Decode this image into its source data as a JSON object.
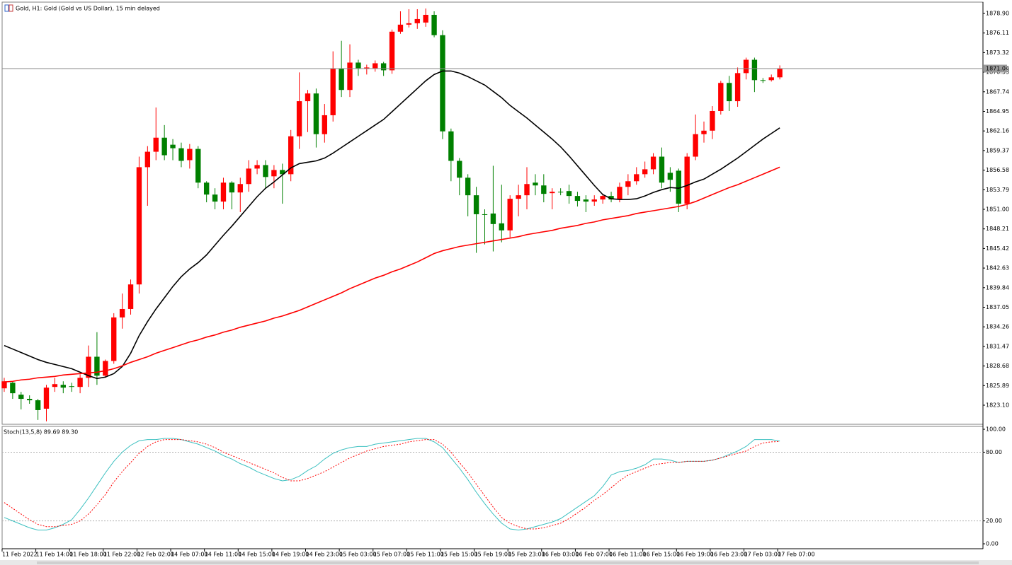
{
  "header": {
    "title": "Gold, H1:  Gold (Gold vs US Dollar), 15 min delayed"
  },
  "chart_data": [
    {
      "type": "candlestick",
      "up_color": "#ff0000",
      "down_color": "#008000",
      "open": [
        1825.5,
        1826.3,
        1824.6,
        1824,
        1823.8,
        1822.6,
        1825.7,
        1826,
        1825.8,
        1825.7,
        1827,
        1830,
        1827.3,
        1829.4,
        1835.6,
        1836.8,
        1840.3,
        1857,
        1859.2,
        1861.2,
        1860.2,
        1859.7,
        1858,
        1859.6,
        1854.8,
        1853.1,
        1852.1,
        1854.8,
        1853.4,
        1854.6,
        1856.8,
        1857.3,
        1855.7,
        1856.6,
        1856,
        1861.4,
        1866.4,
        1867.5,
        1861.7,
        1864.4,
        1871,
        1868,
        1871.9,
        1871,
        1871.1,
        1871.8,
        1870.8,
        1876.3,
        1877.3,
        1877.5,
        1877.6,
        1878.7,
        1875.8,
        1862.1,
        1857.9,
        1855.5,
        1853,
        1850.3,
        1850.4,
        1849,
        1848,
        1852.5,
        1853,
        1854.8,
        1854.4,
        1853.3,
        1853.5,
        1853.6,
        1852.9,
        1852.4,
        1852.1,
        1852.4,
        1852.9,
        1852.4,
        1854.2,
        1855,
        1856,
        1856.7,
        1858.5,
        1856.2,
        1856.5,
        1851.8,
        1858.5,
        1861.7,
        1862.2,
        1865,
        1869,
        1866.4,
        1870.4,
        1872.3,
        1869.4,
        1869.4,
        1869.8
      ],
      "high": [
        1827,
        1826.5,
        1825,
        1824.5,
        1824,
        1826,
        1827,
        1826.5,
        1826.3,
        1827.5,
        1831.6,
        1833.5,
        1829.6,
        1836.2,
        1839,
        1841,
        1858.5,
        1860,
        1865.5,
        1863,
        1861,
        1860.5,
        1860.3,
        1860,
        1855,
        1854,
        1855.5,
        1855,
        1855.5,
        1858,
        1858,
        1858,
        1857.3,
        1857.5,
        1862.3,
        1870.5,
        1868,
        1868.2,
        1866,
        1873.5,
        1875,
        1874.5,
        1872.3,
        1871.6,
        1872.2,
        1872,
        1876.6,
        1879.2,
        1879.5,
        1879.5,
        1879.6,
        1879.2,
        1876.5,
        1862.5,
        1858.3,
        1856,
        1854.2,
        1851,
        1857.2,
        1854.5,
        1853,
        1854.5,
        1857,
        1856,
        1856,
        1854,
        1854,
        1854.5,
        1853.5,
        1853,
        1853,
        1853.2,
        1853.5,
        1854.8,
        1856,
        1857,
        1857.8,
        1859,
        1859.8,
        1857,
        1856.8,
        1859,
        1864.5,
        1863.5,
        1865.7,
        1869.3,
        1870,
        1871.2,
        1872.6,
        1872.6,
        1869.7,
        1870.2,
        1871.5
      ],
      "low": [
        1825,
        1824,
        1822.5,
        1823.3,
        1821,
        1820.8,
        1825,
        1824.8,
        1825,
        1824.8,
        1825.7,
        1826,
        1827,
        1829,
        1834,
        1836,
        1839,
        1851.5,
        1858,
        1858,
        1858,
        1857,
        1856.8,
        1854,
        1852,
        1851,
        1851,
        1851,
        1850.6,
        1853.5,
        1856,
        1854,
        1854,
        1851.8,
        1855,
        1859.6,
        1862,
        1859.8,
        1860.5,
        1863.5,
        1867,
        1867,
        1870,
        1870.2,
        1870.6,
        1870,
        1870.3,
        1876,
        1876.9,
        1876.7,
        1877,
        1875.5,
        1861,
        1855,
        1853,
        1850,
        1844.8,
        1846,
        1845,
        1846.3,
        1847,
        1850,
        1851,
        1853,
        1852,
        1851,
        1853,
        1851.8,
        1851.4,
        1850.6,
        1851.5,
        1851.8,
        1852,
        1852,
        1853,
        1854.5,
        1855.5,
        1856,
        1854,
        1853.5,
        1850.6,
        1851,
        1858,
        1860.5,
        1861,
        1864.5,
        1865,
        1865.6,
        1869.5,
        1867.7,
        1869,
        1869.2,
        1869.5
      ],
      "close": [
        1826.5,
        1824.8,
        1824,
        1823.8,
        1822.4,
        1825.6,
        1826.1,
        1825.6,
        1825.7,
        1827,
        1830,
        1827.3,
        1829.4,
        1835.6,
        1836.8,
        1840.3,
        1857,
        1859.2,
        1861.2,
        1858.7,
        1859.7,
        1857.9,
        1859.6,
        1854.8,
        1853.1,
        1852.1,
        1854.8,
        1853.4,
        1854.6,
        1856.8,
        1857.3,
        1855.6,
        1856.6,
        1856,
        1861.4,
        1866.4,
        1867.5,
        1861.7,
        1864.4,
        1871,
        1868,
        1871.9,
        1871.1,
        1871.2,
        1871.8,
        1870.8,
        1876.3,
        1877.3,
        1877.5,
        1878.1,
        1878.7,
        1875.8,
        1862.1,
        1857.9,
        1855.5,
        1853,
        1850.3,
        1850.2,
        1848.9,
        1848,
        1852.5,
        1853,
        1854.6,
        1854.4,
        1853.2,
        1853.5,
        1853.4,
        1852.9,
        1852.2,
        1852.1,
        1852.4,
        1852.9,
        1852.4,
        1854.2,
        1855,
        1856,
        1856.7,
        1858.5,
        1854.8,
        1855.2,
        1851.8,
        1858.5,
        1861.7,
        1862.2,
        1865,
        1869,
        1866.4,
        1870.4,
        1872.3,
        1869.4,
        1869.3,
        1869.8,
        1871.04
      ],
      "series": [
        {
          "color": "#000000",
          "values": [
            1831.6,
            1831.1,
            1830.6,
            1830.1,
            1829.6,
            1829.2,
            1828.9,
            1828.6,
            1828.3,
            1827.8,
            1827.3,
            1826.9,
            1827.1,
            1827.6,
            1828.6,
            1830.5,
            1833,
            1835,
            1836.8,
            1838.4,
            1840,
            1841.4,
            1842.5,
            1843.4,
            1844.5,
            1845.9,
            1847.3,
            1848.6,
            1850,
            1851.4,
            1852.8,
            1854,
            1854.9,
            1855.9,
            1856.9,
            1857.5,
            1857.7,
            1857.9,
            1858.3,
            1859,
            1859.8,
            1860.6,
            1861.4,
            1862.2,
            1863,
            1863.8,
            1864.9,
            1866,
            1867.1,
            1868.2,
            1869.3,
            1870.2,
            1870.7,
            1870.7,
            1870.4,
            1869.9,
            1869.3,
            1868.7,
            1867.8,
            1866.9,
            1865.8,
            1864.9,
            1864,
            1863,
            1862,
            1861,
            1859.9,
            1858.6,
            1857.2,
            1855.8,
            1854.4,
            1853.1,
            1852.5,
            1852.4,
            1852.4,
            1852.5,
            1852.9,
            1853.4,
            1853.8,
            1854.1,
            1854,
            1854.4,
            1854.9,
            1855.3,
            1856,
            1856.7,
            1857.5,
            1858.3,
            1859.2,
            1860.1,
            1861,
            1861.8,
            1862.6
          ]
        },
        {
          "color": "#ff0000",
          "values": [
            1826.4,
            1826.5,
            1826.7,
            1826.8,
            1827,
            1827.1,
            1827.2,
            1827.4,
            1827.5,
            1827.6,
            1827.7,
            1827.8,
            1828,
            1828.3,
            1828.7,
            1829.2,
            1829.6,
            1830,
            1830.5,
            1830.9,
            1831.3,
            1831.7,
            1832.1,
            1832.4,
            1832.8,
            1833.1,
            1833.5,
            1833.8,
            1834.2,
            1834.5,
            1834.8,
            1835.1,
            1835.5,
            1835.8,
            1836.2,
            1836.6,
            1837.1,
            1837.6,
            1838.1,
            1838.6,
            1839.1,
            1839.7,
            1840.2,
            1840.7,
            1841.2,
            1841.6,
            1842.1,
            1842.5,
            1843,
            1843.5,
            1844.1,
            1844.7,
            1845.1,
            1845.4,
            1845.7,
            1845.9,
            1846.1,
            1846.3,
            1846.5,
            1846.7,
            1846.9,
            1847.1,
            1847.4,
            1847.6,
            1847.8,
            1848,
            1848.3,
            1848.5,
            1848.7,
            1849,
            1849.2,
            1849.5,
            1849.7,
            1849.9,
            1850.1,
            1850.4,
            1850.6,
            1850.8,
            1851,
            1851.2,
            1851.4,
            1851.7,
            1852.1,
            1852.6,
            1853.1,
            1853.6,
            1854.1,
            1854.5,
            1855,
            1855.5,
            1856,
            1856.5,
            1857
          ]
        }
      ],
      "bid": 1871.04,
      "xlim": [
        -0.25,
        116.1
      ],
      "ylim": [
        1820.38,
        1880.51
      ],
      "yticks": [
        {
          "value": 1878.9,
          "label": "1878.90"
        },
        {
          "value": 1876.11,
          "label": "1876.11"
        },
        {
          "value": 1873.32,
          "label": "1873.32"
        },
        {
          "value": 1870.53,
          "label": "1870.53"
        },
        {
          "value": 1867.74,
          "label": "1867.74"
        },
        {
          "value": 1864.95,
          "label": "1864.95"
        },
        {
          "value": 1862.16,
          "label": "1862.16"
        },
        {
          "value": 1859.37,
          "label": "1859.37"
        },
        {
          "value": 1856.58,
          "label": "1856.58"
        },
        {
          "value": 1853.79,
          "label": "1853.79"
        },
        {
          "value": 1851,
          "label": "1851.00"
        },
        {
          "value": 1848.21,
          "label": "1848.21"
        },
        {
          "value": 1845.42,
          "label": "1845.42"
        },
        {
          "value": 1842.63,
          "label": "1842.63"
        },
        {
          "value": 1839.84,
          "label": "1839.84"
        },
        {
          "value": 1837.05,
          "label": "1837.05"
        },
        {
          "value": 1834.26,
          "label": "1834.26"
        },
        {
          "value": 1831.47,
          "label": "1831.47"
        },
        {
          "value": 1828.68,
          "label": "1828.68"
        },
        {
          "value": 1825.89,
          "label": "1825.89"
        },
        {
          "value": 1823.1,
          "label": "1823.10"
        }
      ],
      "xticks": [
        {
          "value": 0,
          "label": "11 Feb 2022"
        },
        {
          "value": 4,
          "label": "11 Feb 14:00"
        },
        {
          "value": 8,
          "label": "11 Feb 18:00"
        },
        {
          "value": 12,
          "label": "11 Feb 22:00"
        },
        {
          "value": 16,
          "label": "12 Feb 02:00"
        },
        {
          "value": 20,
          "label": "14 Feb 07:00"
        },
        {
          "value": 24,
          "label": "14 Feb 11:00"
        },
        {
          "value": 28,
          "label": "14 Feb 15:00"
        },
        {
          "value": 32,
          "label": "14 Feb 19:00"
        },
        {
          "value": 36,
          "label": "14 Feb 23:00"
        },
        {
          "value": 40,
          "label": "15 Feb 03:00"
        },
        {
          "value": 44,
          "label": "15 Feb 07:00"
        },
        {
          "value": 48,
          "label": "15 Feb 11:00"
        },
        {
          "value": 52,
          "label": "15 Feb 15:00"
        },
        {
          "value": 56,
          "label": "15 Feb 19:00"
        },
        {
          "value": 60,
          "label": "15 Feb 23:00"
        },
        {
          "value": 64,
          "label": "16 Feb 03:00"
        },
        {
          "value": 68,
          "label": "16 Feb 07:00"
        },
        {
          "value": 72,
          "label": "16 Feb 11:00"
        },
        {
          "value": 76,
          "label": "16 Feb 15:00"
        },
        {
          "value": 80,
          "label": "16 Feb 19:00"
        },
        {
          "value": 84,
          "label": "16 Feb 23:00"
        },
        {
          "value": 88,
          "label": "17 Feb 03:00"
        },
        {
          "value": 92,
          "label": "17 Feb 07:00"
        }
      ]
    },
    {
      "type": "line",
      "title": "Stoch(13,5,8) 89.69 89.30",
      "series": [
        {
          "color": "#3cc0c0",
          "values": [
            23,
            20,
            17,
            14,
            12,
            12,
            14,
            17,
            21,
            30,
            40,
            51,
            62,
            72,
            80,
            86,
            90,
            91,
            91,
            92,
            92,
            91,
            89,
            87,
            84,
            81,
            77,
            74,
            70,
            67,
            63,
            60,
            57,
            55,
            56,
            59,
            64,
            68,
            74,
            79,
            82,
            84,
            85,
            85,
            87,
            88,
            89,
            90,
            91,
            92,
            92,
            89,
            84,
            75,
            66,
            56,
            45,
            35,
            26,
            18,
            13,
            12,
            13,
            15,
            17,
            19,
            22,
            27,
            32,
            37,
            42,
            50,
            60,
            63,
            64,
            66,
            69,
            74,
            74,
            73,
            71,
            72,
            72,
            72,
            73,
            75,
            78,
            81,
            85,
            91,
            91,
            91,
            89.69
          ]
        },
        {
          "color": "#ff0000",
          "dashed": true,
          "values": [
            36,
            31,
            26,
            21,
            17,
            15,
            15,
            16,
            17,
            20,
            26,
            34,
            43,
            54,
            63,
            71,
            79,
            85,
            89,
            91,
            91,
            91,
            90,
            89,
            87,
            84,
            80,
            77,
            74,
            71,
            68,
            65,
            62,
            58,
            55,
            55,
            57,
            60,
            63,
            67,
            71,
            75,
            78,
            81,
            83,
            85,
            86,
            87,
            89,
            90,
            91,
            91,
            87,
            80,
            71,
            62,
            52,
            42,
            32,
            23,
            18,
            15,
            13,
            13,
            14,
            16,
            18,
            22,
            27,
            32,
            38,
            43,
            49,
            55,
            60,
            63,
            66,
            69,
            70,
            71,
            71,
            72,
            72,
            72,
            73,
            75,
            77,
            79,
            81,
            85,
            88,
            89,
            89.3
          ]
        }
      ],
      "levels": [
        80,
        20
      ],
      "xlim": [
        -0.25,
        116.1
      ],
      "ylim": [
        -4.3,
        102.5
      ],
      "yticks": [
        {
          "value": 100,
          "label": "100.00"
        },
        {
          "value": 80,
          "label": "80.00"
        },
        {
          "value": 20,
          "label": "20.00"
        },
        {
          "value": 0,
          "label": "0.00"
        }
      ]
    }
  ]
}
